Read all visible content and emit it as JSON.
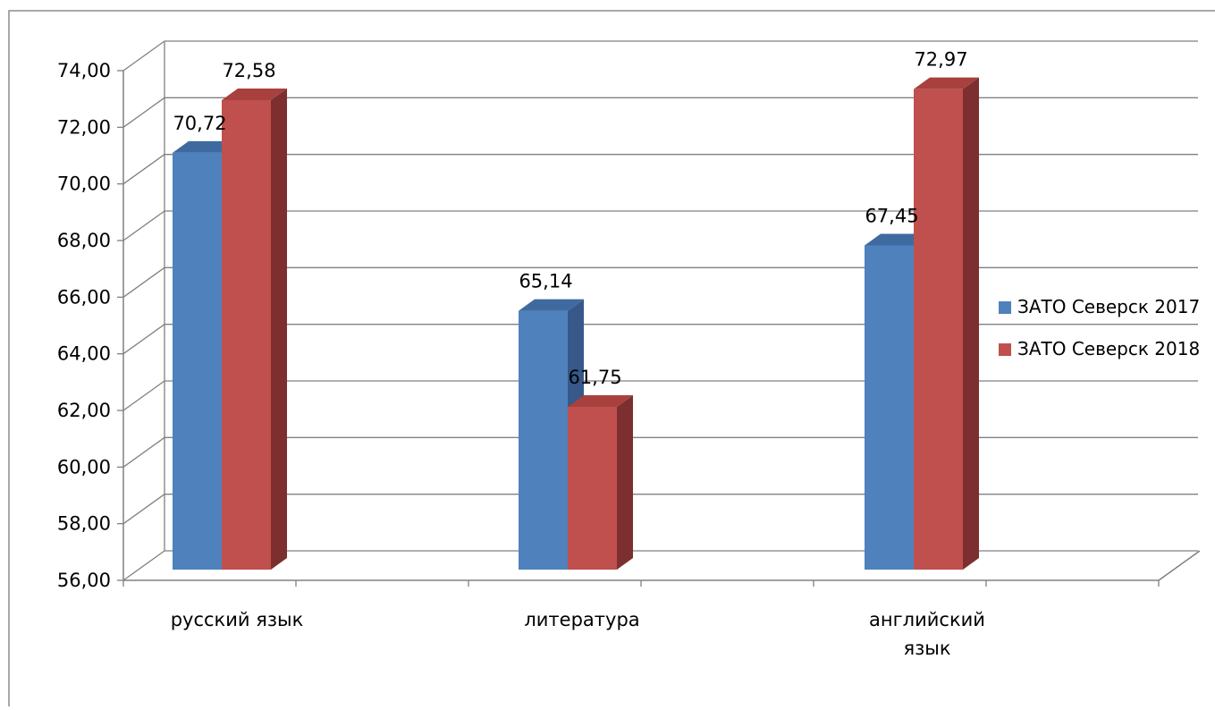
{
  "chart_data": {
    "type": "bar",
    "categories": [
      "русский язык",
      "литература",
      "английский\nязык"
    ],
    "series": [
      {
        "name": "ЗАТО Северск 2017",
        "values": [
          70.72,
          65.14,
          67.45
        ],
        "labels": [
          "70,72",
          "65,14",
          "67,45"
        ]
      },
      {
        "name": "ЗАТО Северск 2018",
        "values": [
          72.58,
          61.75,
          72.97
        ],
        "labels": [
          "72,58",
          "61,75",
          "72,97"
        ]
      }
    ],
    "ylim": [
      56,
      74
    ],
    "ytick_step": 2,
    "ytick_labels": [
      "56,00",
      "58,00",
      "60,00",
      "62,00",
      "64,00",
      "66,00",
      "68,00",
      "70,00",
      "72,00",
      "74,00"
    ],
    "grid": true,
    "three_d": true,
    "legend_position": "right",
    "colors": {
      "series_front": [
        "#4f81bd",
        "#c0504d"
      ],
      "series_side": [
        "#36598a",
        "#7c2f2e"
      ],
      "series_top": [
        "#3f6aa0",
        "#a8403d"
      ],
      "grid": "#808080",
      "text": "#000000"
    }
  }
}
